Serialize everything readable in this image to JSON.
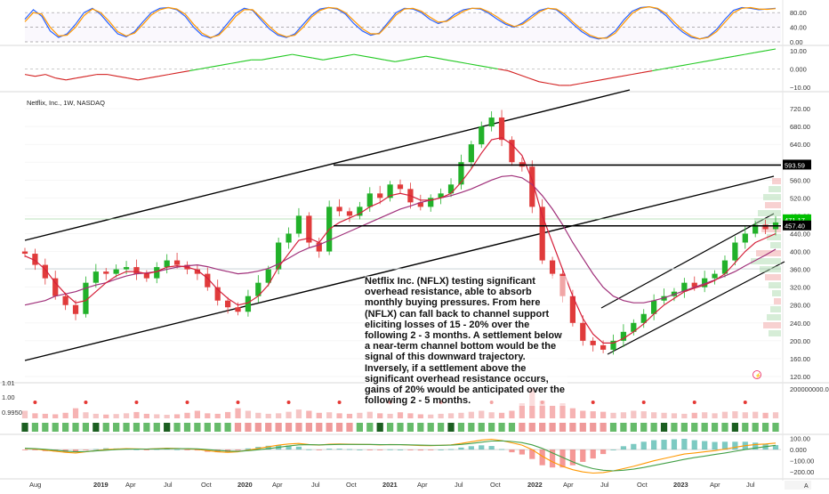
{
  "symbol_label": "Netflix, Inc., 1W, NASDAQ",
  "annotation": "Netflix Inc. (NFLX) testing significant overhead resistance, able to absorb monthly buying pressures. From here (NFLX) can fall back to channel support eliciting losses of 15 - 20% over the following 2 - 3 months. A settlement below a near-term channel bottom would be the signal of this downward trajectory. Inversely, if a settlement above the significant overhead resistance occurs, gains of 20% would be anticipated over the following 2 - 5 months.",
  "colors": {
    "up": "#26a69a",
    "down": "#ef5350",
    "ma_fast": "#d5203a",
    "ma_slow": "#a0307a",
    "resistance_badge": "#000000",
    "price_badge": "#00c000"
  },
  "time_labels": [
    "Aug",
    "2019",
    "Apr",
    "Jul",
    "Oct",
    "2020",
    "Apr",
    "Jul",
    "Oct",
    "2021",
    "Apr",
    "Jul",
    "Oct",
    "2022",
    "Apr",
    "Jul",
    "Oct",
    "2023",
    "Apr",
    "Jul"
  ],
  "chart_data": [
    {
      "type": "line",
      "pane": "stochastic",
      "y_ticks": [
        "80.00",
        "40.00",
        "0.00"
      ],
      "ylim": [
        0,
        100
      ],
      "series": [
        {
          "values": [
            62,
            88,
            70,
            30,
            12,
            22,
            48,
            80,
            92,
            75,
            48,
            22,
            14,
            28,
            55,
            80,
            92,
            94,
            88,
            70,
            40,
            18,
            10,
            22,
            50,
            78,
            92,
            86,
            60,
            35,
            18,
            12,
            22,
            48,
            74,
            90,
            94,
            90,
            76,
            50,
            30,
            18,
            24,
            52,
            80,
            92,
            90,
            80,
            62,
            50,
            58,
            76,
            88,
            92,
            90,
            78,
            62,
            48,
            40,
            52,
            70,
            86,
            92,
            88,
            70,
            48,
            28,
            14,
            8,
            12,
            30,
            60,
            84,
            94,
            96,
            90,
            72,
            46,
            26,
            12,
            8,
            14,
            34,
            62,
            86,
            94,
            92,
            88,
            90,
            92
          ]
        },
        {
          "values": [
            55,
            80,
            76,
            40,
            16,
            18,
            40,
            72,
            90,
            80,
            56,
            28,
            16,
            24,
            48,
            74,
            88,
            94,
            90,
            76,
            48,
            24,
            12,
            18,
            42,
            70,
            88,
            88,
            66,
            42,
            22,
            14,
            18,
            40,
            68,
            86,
            94,
            92,
            80,
            58,
            36,
            22,
            22,
            46,
            74,
            90,
            92,
            84,
            68,
            54,
            56,
            70,
            84,
            92,
            92,
            82,
            68,
            52,
            42,
            48,
            64,
            82,
            92,
            90,
            76,
            54,
            34,
            18,
            10,
            10,
            24,
            52,
            78,
            92,
            96,
            92,
            78,
            54,
            32,
            16,
            8,
            12,
            28,
            54,
            80,
            92,
            94,
            90,
            89,
            91
          ]
        }
      ]
    },
    {
      "type": "line",
      "pane": "momentum",
      "y_ticks": [
        "10.00",
        "0.000",
        "−10.00"
      ],
      "ylim": [
        -11,
        11
      ],
      "series": [
        {
          "values": [
            -3,
            -4,
            -3,
            -5,
            -6,
            -5,
            -4,
            -3,
            -3,
            -4,
            -5,
            -6,
            -5,
            -4,
            -3,
            -2,
            -1,
            0,
            1,
            2,
            3,
            4,
            5,
            5,
            6,
            7,
            8,
            7,
            6,
            5,
            6,
            7,
            8,
            7,
            6,
            5,
            4,
            5,
            6,
            7,
            6,
            5,
            4,
            3,
            2,
            1,
            0,
            -1,
            -3,
            -5,
            -7,
            -8,
            -9,
            -9,
            -8,
            -7,
            -6,
            -5,
            -4,
            -3,
            -2,
            -1,
            0,
            1,
            2,
            3,
            4,
            5,
            6,
            7,
            8,
            9,
            10,
            11
          ]
        }
      ]
    },
    {
      "type": "candlestick",
      "pane": "price",
      "x": [
        "Aug",
        "2019",
        "Apr",
        "Jul",
        "Oct",
        "2020",
        "Apr",
        "Jul",
        "Oct",
        "2021",
        "Apr",
        "Jul",
        "Oct",
        "2022",
        "Apr",
        "Jul",
        "Oct",
        "2023",
        "Apr",
        "Jul"
      ],
      "y_ticks": [
        "720.00",
        "680.00",
        "640.00",
        "600.00",
        "560.00",
        "520.00",
        "480.00",
        "440.00",
        "400.00",
        "360.00",
        "320.00",
        "280.00",
        "240.00",
        "200.00",
        "160.00",
        "120.00"
      ],
      "ylim": [
        110,
        740
      ],
      "closes": [
        395,
        370,
        340,
        300,
        280,
        260,
        330,
        355,
        350,
        360,
        365,
        350,
        340,
        365,
        380,
        370,
        360,
        350,
        320,
        290,
        275,
        265,
        300,
        330,
        360,
        420,
        440,
        480,
        420,
        400,
        500,
        490,
        480,
        500,
        530,
        520,
        550,
        540,
        510,
        500,
        520,
        530,
        550,
        600,
        640,
        680,
        700,
        650,
        600,
        590,
        500,
        380,
        350,
        300,
        240,
        200,
        190,
        180,
        200,
        220,
        240,
        260,
        290,
        300,
        310,
        330,
        320,
        340,
        350,
        380,
        420,
        440,
        460,
        450,
        465
      ],
      "ma_fast": [
        390,
        380,
        360,
        330,
        305,
        285,
        290,
        310,
        330,
        345,
        355,
        355,
        350,
        355,
        365,
        368,
        365,
        358,
        340,
        315,
        295,
        280,
        285,
        300,
        325,
        365,
        395,
        425,
        430,
        420,
        450,
        465,
        475,
        485,
        500,
        510,
        525,
        530,
        525,
        515,
        515,
        520,
        530,
        555,
        585,
        620,
        650,
        655,
        640,
        615,
        560,
        480,
        420,
        360,
        300,
        250,
        215,
        195,
        195,
        205,
        220,
        238,
        260,
        280,
        295,
        310,
        318,
        325,
        335,
        350,
        375,
        400,
        420,
        430,
        440
      ],
      "ma_slow": [
        280,
        285,
        290,
        300,
        305,
        310,
        318,
        325,
        330,
        338,
        345,
        350,
        352,
        355,
        360,
        365,
        368,
        370,
        366,
        360,
        355,
        350,
        352,
        356,
        362,
        372,
        385,
        398,
        408,
        415,
        425,
        435,
        445,
        455,
        465,
        475,
        485,
        495,
        502,
        510,
        515,
        520,
        525,
        532,
        540,
        550,
        560,
        568,
        570,
        565,
        550,
        525,
        495,
        460,
        420,
        385,
        350,
        320,
        300,
        290,
        285,
        285,
        290,
        296,
        304,
        312,
        320,
        328,
        336,
        345,
        355,
        368,
        380,
        392,
        405
      ],
      "horizontal_levels": [
        {
          "label": "593.59",
          "value": 593.59
        },
        {
          "label": "457.40",
          "value": 457.4
        },
        {
          "value": 470
        }
      ],
      "price_badge": {
        "label": "471.17",
        "value": 471.17
      }
    },
    {
      "type": "bar",
      "pane": "volume",
      "y_ticks_left": [
        "1.01",
        "1.00",
        "0.9950"
      ],
      "y_ticks_right": [
        "200000000.00"
      ],
      "values": [
        30,
        20,
        18,
        16,
        22,
        40,
        24,
        18,
        15,
        17,
        20,
        25,
        18,
        16,
        14,
        16,
        22,
        30,
        20,
        18,
        25,
        40,
        30,
        22,
        18,
        20,
        26,
        35,
        30,
        22,
        24,
        20,
        18,
        22,
        26,
        20,
        18,
        24,
        20,
        16,
        15,
        18,
        20,
        22,
        26,
        30,
        24,
        22,
        30,
        60,
        120,
        70,
        50,
        60,
        40,
        30,
        28,
        26,
        22,
        24,
        30,
        28,
        24,
        22,
        20,
        18,
        22,
        24,
        20,
        26,
        28,
        24,
        26,
        22,
        24
      ]
    },
    {
      "type": "line",
      "pane": "macd",
      "y_ticks": [
        "100.00",
        "0.000",
        "−100.00",
        "−200.00"
      ],
      "ylim": [
        -230,
        120
      ],
      "series": [
        {
          "values": [
            10,
            5,
            -5,
            -15,
            -25,
            -30,
            -20,
            -10,
            0,
            5,
            8,
            6,
            4,
            8,
            12,
            10,
            6,
            2,
            -10,
            -20,
            -25,
            -20,
            -5,
            10,
            25,
            40,
            50,
            55,
            45,
            40,
            48,
            50,
            48,
            46,
            45,
            42,
            45,
            44,
            40,
            36,
            35,
            38,
            42,
            55,
            70,
            85,
            92,
            80,
            60,
            40,
            0,
            -60,
            -110,
            -150,
            -180,
            -200,
            -210,
            -205,
            -190,
            -170,
            -150,
            -125,
            -100,
            -80,
            -60,
            -40,
            -30,
            -20,
            -10,
            5,
            20,
            35,
            45,
            50,
            58
          ]
        },
        {
          "values": [
            12,
            8,
            2,
            -6,
            -14,
            -20,
            -18,
            -12,
            -6,
            0,
            4,
            5,
            5,
            6,
            8,
            9,
            8,
            6,
            0,
            -8,
            -14,
            -16,
            -10,
            -2,
            8,
            20,
            32,
            42,
            44,
            42,
            44,
            46,
            46,
            46,
            46,
            44,
            44,
            44,
            42,
            40,
            38,
            38,
            40,
            46,
            55,
            66,
            76,
            78,
            72,
            62,
            42,
            10,
            -30,
            -70,
            -110,
            -145,
            -170,
            -185,
            -190,
            -185,
            -175,
            -160,
            -142,
            -124,
            -106,
            -88,
            -72,
            -58,
            -44,
            -30,
            -15,
            0,
            14,
            26,
            38
          ]
        }
      ]
    }
  ]
}
